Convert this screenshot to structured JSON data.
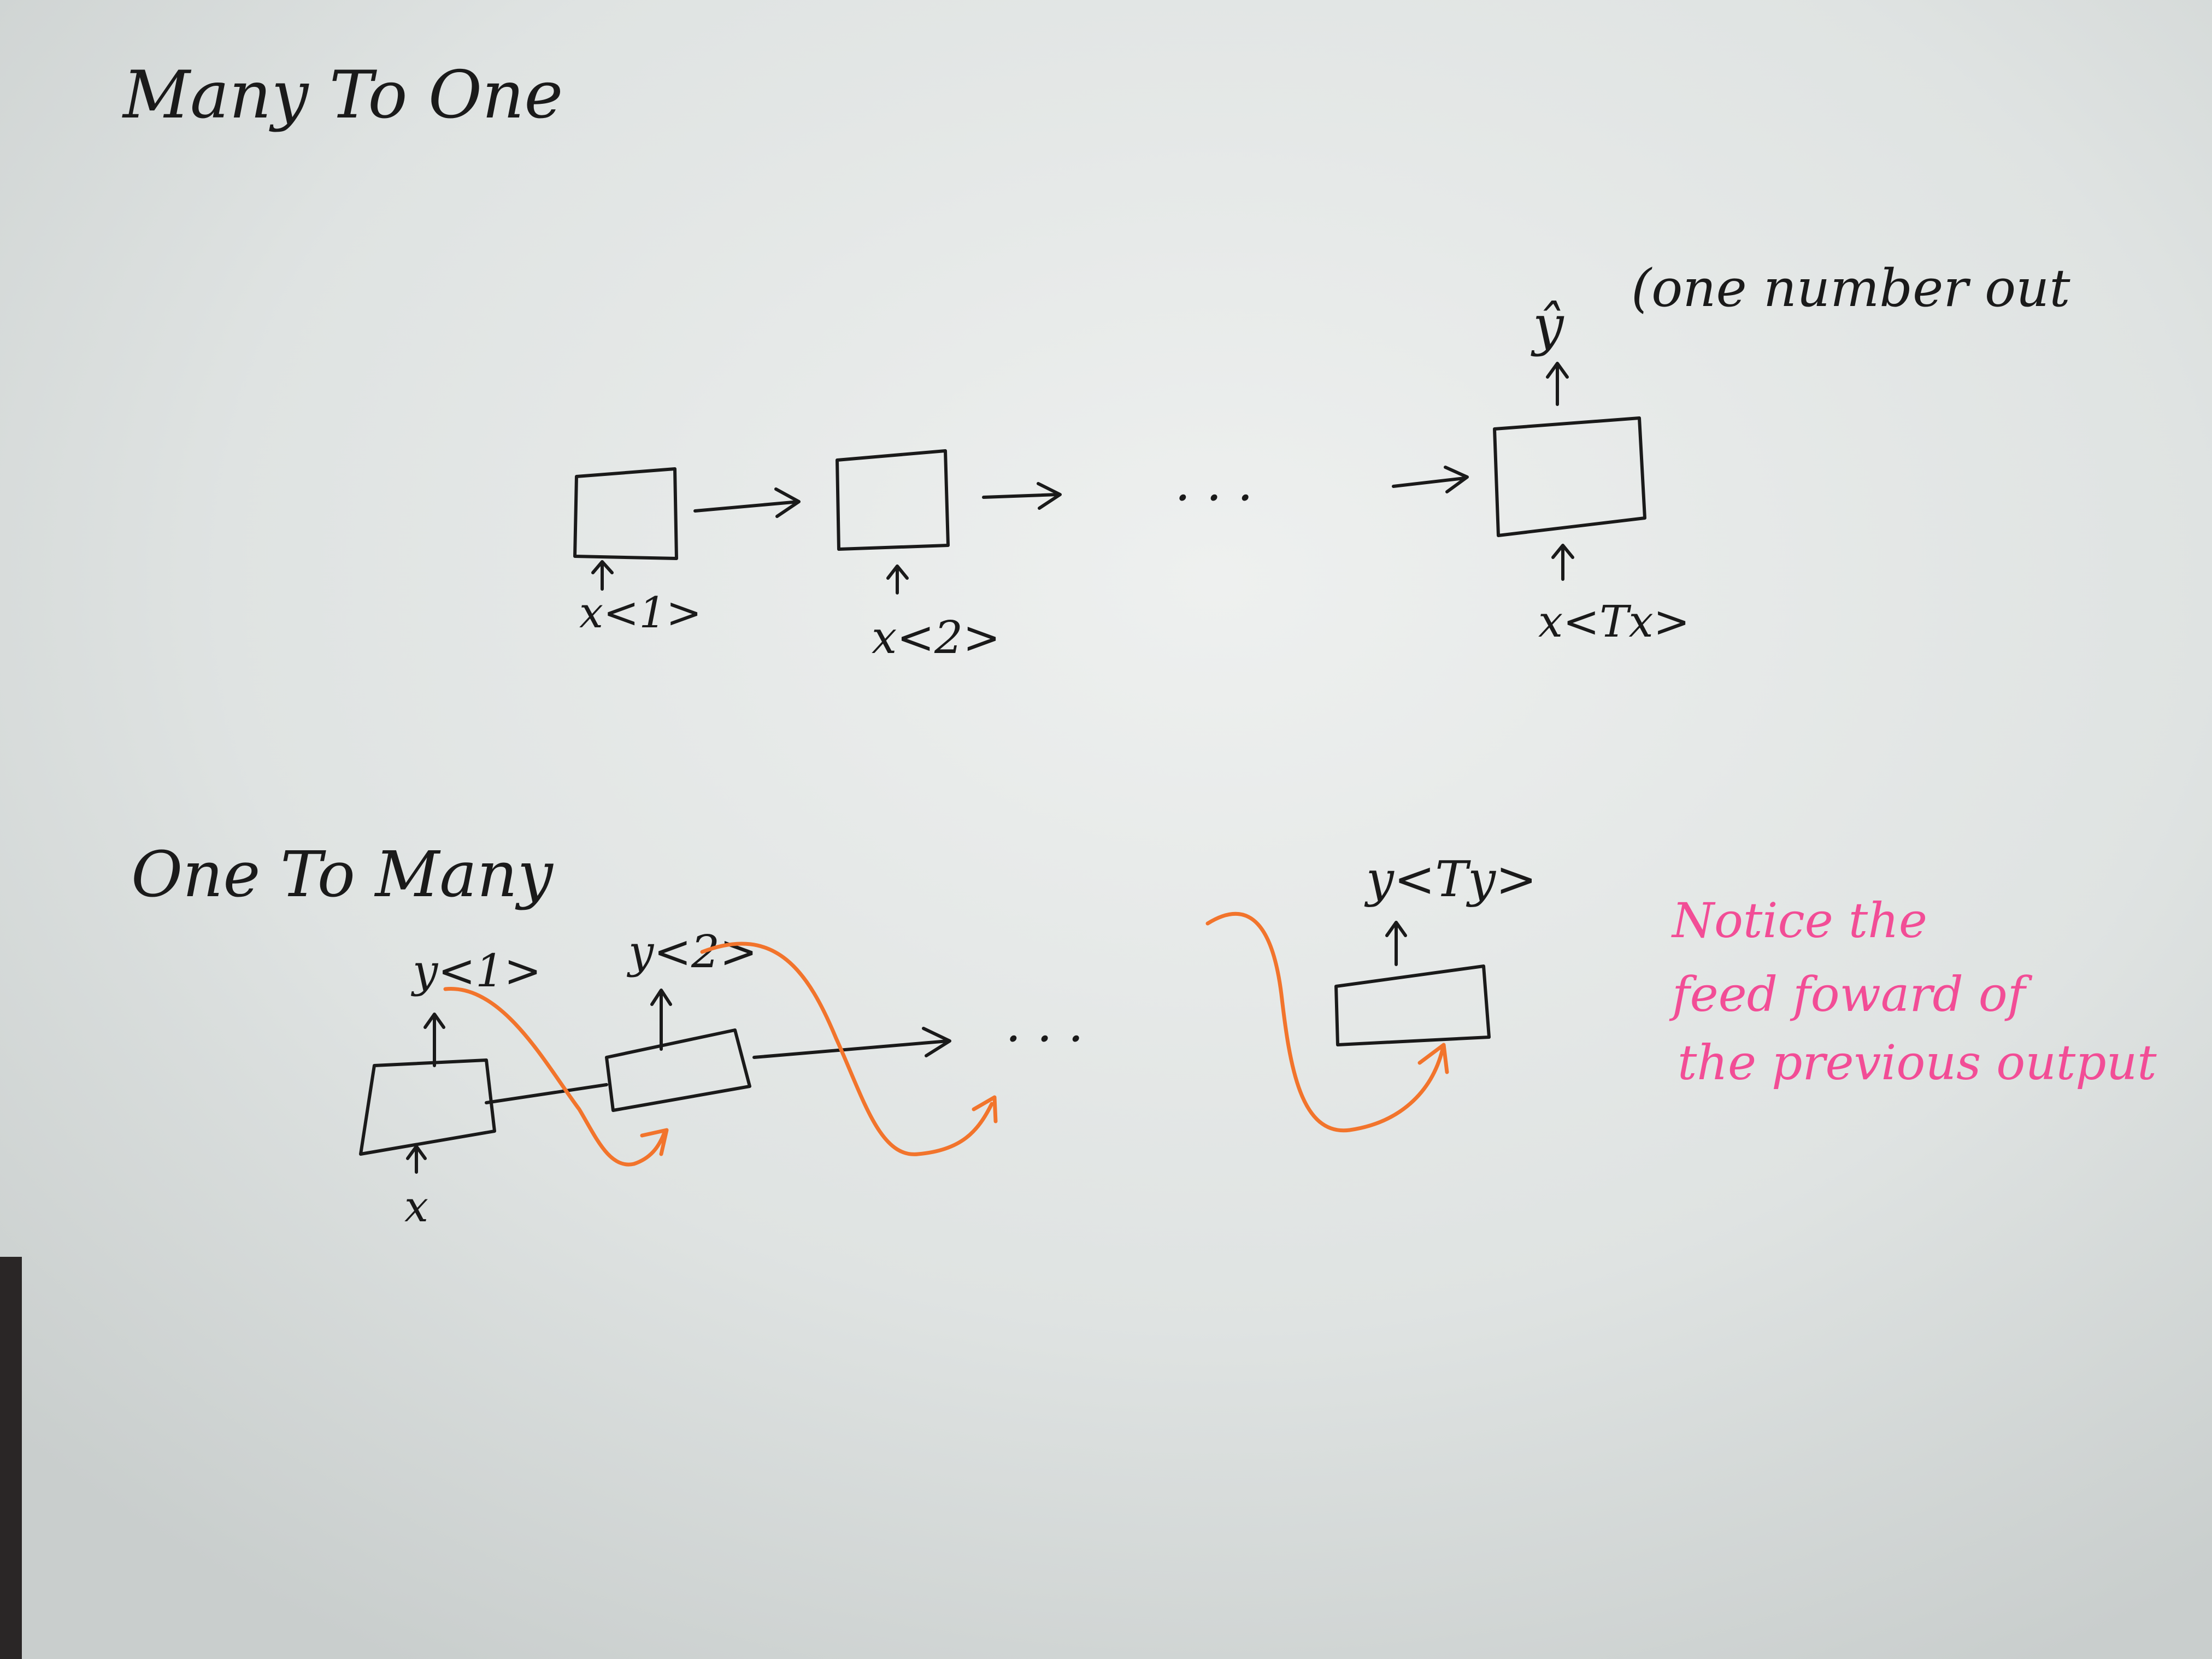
{
  "sections": {
    "many_to_one": {
      "title": "Many To One",
      "inputs": [
        "x<1>",
        "x<2>",
        "x<Tx>"
      ],
      "ellipsis": ". . .",
      "output": "ŷ",
      "note": "(one number out"
    },
    "one_to_many": {
      "title": "One To Many",
      "input": "x",
      "outputs": [
        "y<1>",
        "y<2>",
        "y<Ty>"
      ],
      "ellipsis": ". . .",
      "note_lines": [
        "Notice the",
        "feed foward of",
        "the previous output"
      ]
    }
  },
  "colors": {
    "ink": "#1a1a1a",
    "orange_arrows": "#f2742c",
    "pink_note": "#f24d96",
    "board": "#d8dcdc"
  }
}
